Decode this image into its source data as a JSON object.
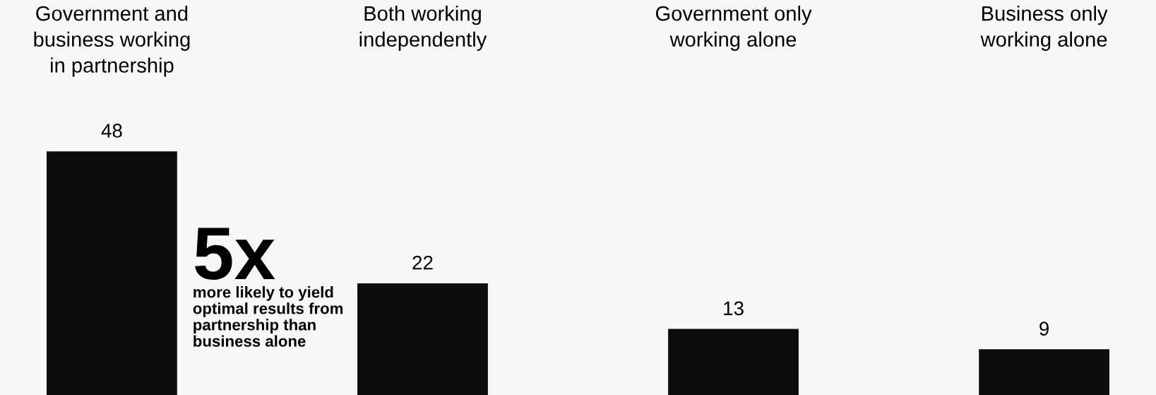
{
  "chart_data": {
    "type": "bar",
    "categories": [
      "Government and\nbusiness working\nin partnership",
      "Both working\nindependently",
      "Government only\nworking alone",
      "Business only\nworking alone"
    ],
    "values": [
      48,
      22,
      13,
      9
    ],
    "color": "#0d0d0d",
    "data_labels": true,
    "annotations": [
      "5x",
      "more likely to yield\noptimal results from\npartnership than\nbusiness alone"
    ]
  }
}
